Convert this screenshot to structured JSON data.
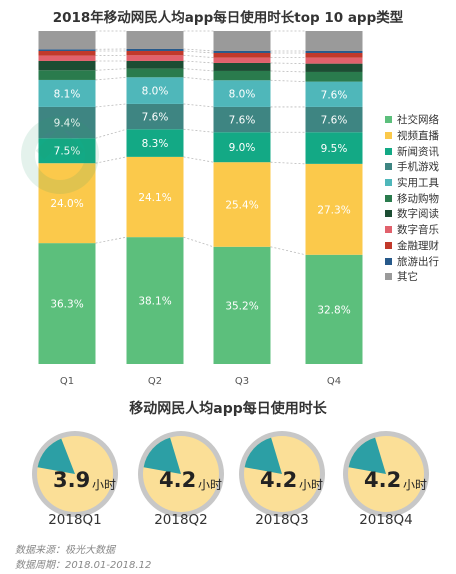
{
  "colors": {
    "series": [
      "#5cbf7c",
      "#fbc94b",
      "#13a985",
      "#3e8582",
      "#4fb7ba",
      "#2a7b4d",
      "#1c4d33",
      "#e1616c",
      "#c1392b",
      "#27598a",
      "#9a9a9a"
    ],
    "donut_fill": "#fbdf97",
    "donut_slice": "#2c9fa5",
    "donut_ring": "#c7c7c7"
  },
  "chart_data": [
    {
      "type": "bar",
      "stacked": true,
      "title": "2018年移动网民人均app每日使用时长top 10 app类型",
      "categories": [
        "Q1",
        "Q2",
        "Q3",
        "Q4"
      ],
      "ylim": [
        0,
        100
      ],
      "legend_position": "right",
      "series": [
        {
          "name": "社交网络",
          "values": [
            36.3,
            38.1,
            35.2,
            32.8
          ],
          "labels": [
            "36.3%",
            "38.1%",
            "35.2%",
            "32.8%"
          ]
        },
        {
          "name": "视频直播",
          "values": [
            24.0,
            24.1,
            25.4,
            27.3
          ],
          "labels": [
            "24.0%",
            "24.1%",
            "25.4%",
            "27.3%"
          ]
        },
        {
          "name": "新闻资讯",
          "values": [
            7.5,
            8.3,
            9.0,
            9.5
          ],
          "labels": [
            "7.5%",
            "8.3%",
            "9.0%",
            "9.5%"
          ]
        },
        {
          "name": "手机游戏",
          "values": [
            9.4,
            7.6,
            7.6,
            7.6
          ],
          "labels": [
            "9.4%",
            "7.6%",
            "7.6%",
            "7.6%"
          ]
        },
        {
          "name": "实用工具",
          "values": [
            8.1,
            8.0,
            8.0,
            7.6
          ],
          "labels": [
            "8.1%",
            "8.0%",
            "8.0%",
            "7.6%"
          ]
        },
        {
          "name": "移动购物",
          "values": [
            2.9,
            2.6,
            2.8,
            2.9
          ]
        },
        {
          "name": "数字阅读",
          "values": [
            2.8,
            2.3,
            2.4,
            2.5
          ]
        },
        {
          "name": "数字音乐",
          "values": [
            1.6,
            1.7,
            1.6,
            1.8
          ]
        },
        {
          "name": "金融理财",
          "values": [
            1.4,
            1.3,
            1.4,
            1.4
          ]
        },
        {
          "name": "旅游出行",
          "values": [
            0.5,
            0.6,
            0.6,
            0.6
          ]
        },
        {
          "name": "其它",
          "values": [
            5.5,
            5.4,
            6.0,
            6.0
          ]
        }
      ]
    },
    {
      "type": "pie",
      "title": "移动网民人均app每日使用时长",
      "categories": [
        "2018Q1",
        "2018Q2",
        "2018Q3",
        "2018Q4"
      ],
      "values": [
        3.9,
        4.2,
        4.2,
        4.2
      ],
      "value_labels": [
        "3.9",
        "4.2",
        "4.2",
        "4.2"
      ],
      "unit": "小时",
      "day_hours": 24
    }
  ],
  "source": {
    "line1": "数据来源：极光大数据",
    "line2": "数据周期：2018.01-2018.12"
  }
}
